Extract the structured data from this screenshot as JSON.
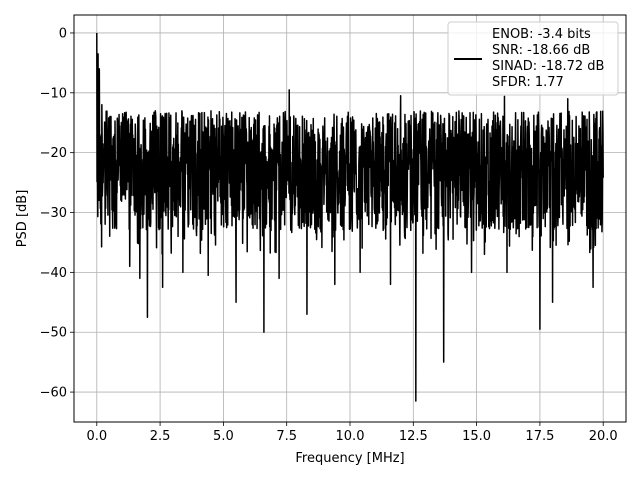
{
  "chart_data": {
    "type": "line",
    "title": "",
    "xlabel": "Frequency [MHz]",
    "ylabel": "PSD [dB]",
    "xlim": [
      -0.9,
      20.9
    ],
    "ylim": [
      -65,
      3
    ],
    "xticks": [
      0.0,
      2.5,
      5.0,
      7.5,
      10.0,
      12.5,
      15.0,
      17.5,
      20.0
    ],
    "xtick_labels": [
      "0.0",
      "2.5",
      "5.0",
      "7.5",
      "10.0",
      "12.5",
      "15.0",
      "17.5",
      "20.0"
    ],
    "yticks": [
      0,
      -10,
      -20,
      -30,
      -40,
      -50,
      -60
    ],
    "ytick_labels": [
      "0",
      "−10",
      "−20",
      "−30",
      "−40",
      "−50",
      "−60"
    ],
    "grid": true,
    "legend_position": "top-right",
    "line_color": "#000000",
    "series": [
      {
        "legend_lines": [
          "ENOB: -3.4 bits",
          "SNR: -18.66 dB",
          "SINAD: -18.72 dB",
          "SFDR: 1.77"
        ],
        "envelope": {
          "x_range": [
            0.0,
            20.0
          ],
          "upper_typical_db": -13,
          "lower_typical_db": -33,
          "floor_db": -37
        },
        "peaks": [
          {
            "x": 0.0,
            "y": 0.0
          },
          {
            "x": 0.05,
            "y": -3.5
          },
          {
            "x": 0.1,
            "y": -6.0
          },
          {
            "x": 0.2,
            "y": -12.0
          },
          {
            "x": 7.6,
            "y": -9.5
          },
          {
            "x": 12.0,
            "y": -10.5
          },
          {
            "x": 16.1,
            "y": -10.6
          },
          {
            "x": 18.6,
            "y": -11.0
          }
        ],
        "dips": [
          {
            "x": 1.3,
            "y": -39.0
          },
          {
            "x": 1.7,
            "y": -41.0
          },
          {
            "x": 2.0,
            "y": -47.5
          },
          {
            "x": 2.6,
            "y": -42.5
          },
          {
            "x": 3.4,
            "y": -40.0
          },
          {
            "x": 4.4,
            "y": -40.5
          },
          {
            "x": 5.5,
            "y": -45.0
          },
          {
            "x": 6.6,
            "y": -50.0
          },
          {
            "x": 7.2,
            "y": -41.0
          },
          {
            "x": 8.3,
            "y": -47.0
          },
          {
            "x": 9.4,
            "y": -42.0
          },
          {
            "x": 10.4,
            "y": -40.0
          },
          {
            "x": 11.6,
            "y": -42.0
          },
          {
            "x": 12.6,
            "y": -61.5
          },
          {
            "x": 13.7,
            "y": -55.0
          },
          {
            "x": 14.8,
            "y": -40.0
          },
          {
            "x": 16.2,
            "y": -40.0
          },
          {
            "x": 17.5,
            "y": -49.5
          },
          {
            "x": 18.0,
            "y": -45.0
          },
          {
            "x": 19.6,
            "y": -42.5
          }
        ]
      }
    ]
  }
}
